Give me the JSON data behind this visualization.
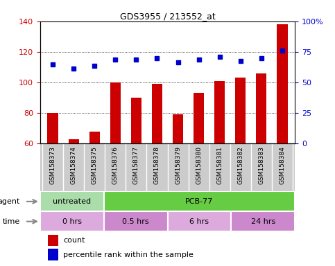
{
  "title": "GDS3955 / 213552_at",
  "samples": [
    "GSM158373",
    "GSM158374",
    "GSM158375",
    "GSM158376",
    "GSM158377",
    "GSM158378",
    "GSM158379",
    "GSM158380",
    "GSM158381",
    "GSM158382",
    "GSM158383",
    "GSM158384"
  ],
  "counts": [
    80,
    63,
    68,
    100,
    90,
    99,
    79,
    93,
    101,
    103,
    106,
    138
  ],
  "percentile_ranks": [
    112,
    109,
    111,
    115,
    115,
    116,
    113,
    115,
    117,
    114,
    116,
    121
  ],
  "ylim_left": [
    60,
    140
  ],
  "ylim_right": [
    0,
    100
  ],
  "yticks_left": [
    60,
    80,
    100,
    120,
    140
  ],
  "yticks_right": [
    0,
    25,
    50,
    75,
    100
  ],
  "ytick_labels_right": [
    "0",
    "25",
    "50",
    "75",
    "100%"
  ],
  "bar_color": "#cc0000",
  "dot_color": "#0000cc",
  "agent_labels": [
    {
      "text": "untreated",
      "start": 0,
      "end": 3,
      "color": "#aaddaa"
    },
    {
      "text": "PCB-77",
      "start": 3,
      "end": 12,
      "color": "#66cc44"
    }
  ],
  "time_labels": [
    {
      "text": "0 hrs",
      "start": 0,
      "end": 3,
      "color": "#ddaadd"
    },
    {
      "text": "0.5 hrs",
      "start": 3,
      "end": 6,
      "color": "#cc88cc"
    },
    {
      "text": "6 hrs",
      "start": 6,
      "end": 9,
      "color": "#ddaadd"
    },
    {
      "text": "24 hrs",
      "start": 9,
      "end": 12,
      "color": "#cc88cc"
    }
  ],
  "legend_count_color": "#cc0000",
  "legend_dot_color": "#0000cc",
  "xlabel_agent": "agent",
  "xlabel_time": "time",
  "tick_label_color_left": "#cc0000",
  "tick_label_color_right": "#0000cc",
  "sample_bg_color": "#cccccc",
  "bar_width": 0.5
}
